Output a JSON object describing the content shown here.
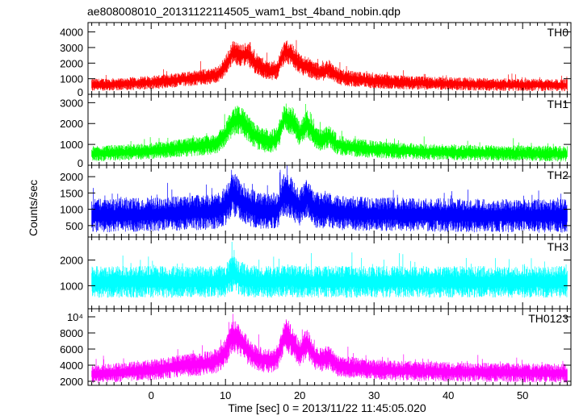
{
  "chart_data": {
    "type": "line",
    "title": "ae808008010_20131122114505_wam1_bst_4band_nobin.qdp",
    "xlabel": "Time [sec] 0 = 2013/11/22 11:45:05.020",
    "ylabel": "Counts/sec",
    "xlim": [
      -8.5,
      56.5
    ],
    "x_ticks": [
      0,
      10,
      20,
      30,
      40,
      50
    ],
    "x_minor_step": 1,
    "grid": false,
    "legend": "none",
    "panels": [
      {
        "name": "TH0",
        "color": "#ff0000",
        "ylim": [
          0,
          4600
        ],
        "y_ticks": [
          0,
          1000,
          2000,
          3000,
          4000
        ],
        "y_tick_labels": [
          "0",
          "1000",
          "2000",
          "3000",
          "4000"
        ],
        "series": {
          "x": [
            -8,
            -6,
            -4,
            -2,
            0,
            2,
            4,
            6,
            8,
            9,
            10,
            11,
            12,
            13,
            14,
            15,
            16,
            17,
            18,
            19,
            20,
            21,
            22,
            23,
            24,
            25,
            26,
            28,
            30,
            32,
            34,
            36,
            38,
            40,
            42,
            44,
            46,
            48,
            50,
            52,
            54,
            56
          ],
          "y": [
            600,
            630,
            660,
            700,
            760,
            850,
            950,
            1050,
            1150,
            1300,
            1800,
            2700,
            2500,
            2600,
            2000,
            1700,
            1500,
            1600,
            2800,
            2500,
            1900,
            1800,
            1500,
            1400,
            1600,
            1200,
            1050,
            950,
            850,
            800,
            760,
            720,
            700,
            680,
            660,
            640,
            630,
            620,
            610,
            600,
            590,
            580
          ],
          "noise": [
            400,
            400,
            400,
            420,
            440,
            460,
            480,
            500,
            520,
            550,
            650,
            750,
            750,
            750,
            700,
            650,
            600,
            650,
            750,
            750,
            650,
            650,
            600,
            600,
            620,
            550,
            520,
            500,
            480,
            460,
            450,
            440,
            430,
            420,
            420,
            410,
            410,
            400,
            400,
            400,
            400,
            400
          ]
        }
      },
      {
        "name": "TH1",
        "color": "#00ff00",
        "ylim": [
          0,
          3400
        ],
        "y_ticks": [
          0,
          1000,
          2000,
          3000
        ],
        "y_tick_labels": [
          "0",
          "1000",
          "2000",
          "3000"
        ],
        "series": {
          "x": [
            -8,
            -6,
            -4,
            -2,
            0,
            2,
            4,
            6,
            8,
            9,
            10,
            11,
            12,
            13,
            14,
            15,
            16,
            17,
            18,
            19,
            20,
            21,
            22,
            23,
            24,
            25,
            26,
            28,
            30,
            32,
            34,
            36,
            38,
            40,
            42,
            44,
            46,
            48,
            50,
            52,
            54,
            56
          ],
          "y": [
            550,
            580,
            610,
            640,
            690,
            760,
            830,
            900,
            980,
            1100,
            1500,
            2100,
            2200,
            1800,
            1400,
            1200,
            1100,
            1300,
            2300,
            2100,
            1500,
            2000,
            1400,
            1200,
            1400,
            1000,
            900,
            820,
            760,
            720,
            690,
            660,
            640,
            620,
            610,
            600,
            590,
            580,
            570,
            560,
            550,
            540
          ],
          "noise": [
            380,
            380,
            380,
            390,
            400,
            420,
            440,
            460,
            480,
            500,
            580,
            700,
            700,
            650,
            600,
            560,
            540,
            580,
            700,
            680,
            600,
            650,
            560,
            540,
            560,
            500,
            460,
            440,
            420,
            410,
            400,
            390,
            390,
            380,
            380,
            380,
            380,
            380,
            380,
            380,
            380,
            380
          ]
        }
      },
      {
        "name": "TH2",
        "color": "#0000ff",
        "ylim": [
          150,
          2350
        ],
        "y_ticks": [
          500,
          1000,
          1500,
          2000
        ],
        "y_tick_labels": [
          "500",
          "1000",
          "1500",
          "2000"
        ],
        "series": {
          "x": [
            -8,
            -6,
            -4,
            -2,
            0,
            2,
            4,
            6,
            8,
            9,
            10,
            11,
            12,
            13,
            14,
            15,
            16,
            17,
            18,
            19,
            20,
            21,
            22,
            23,
            24,
            25,
            26,
            28,
            30,
            32,
            34,
            36,
            38,
            40,
            42,
            44,
            46,
            48,
            50,
            52,
            54,
            56
          ],
          "y": [
            800,
            810,
            820,
            830,
            840,
            860,
            880,
            900,
            920,
            950,
            1100,
            1500,
            1250,
            1100,
            1000,
            950,
            930,
            980,
            1500,
            1300,
            1050,
            1350,
            1000,
            950,
            1000,
            900,
            880,
            860,
            850,
            840,
            835,
            830,
            825,
            820,
            815,
            810,
            805,
            800,
            800,
            800,
            800,
            800
          ],
          "noise": [
            520,
            520,
            520,
            520,
            520,
            530,
            530,
            540,
            540,
            550,
            600,
            700,
            650,
            600,
            580,
            560,
            560,
            580,
            700,
            650,
            580,
            620,
            560,
            550,
            560,
            540,
            530,
            530,
            520,
            520,
            520,
            520,
            520,
            520,
            520,
            520,
            520,
            520,
            520,
            520,
            520,
            520
          ]
        }
      },
      {
        "name": "TH3",
        "color": "#00ffff",
        "ylim": [
          100,
          2900
        ],
        "y_ticks": [
          1000,
          2000
        ],
        "y_tick_labels": [
          "1000",
          "2000"
        ],
        "series": {
          "x": [
            -8,
            -6,
            -4,
            -2,
            0,
            2,
            4,
            6,
            8,
            9,
            10,
            11,
            12,
            13,
            14,
            15,
            16,
            17,
            18,
            19,
            20,
            21,
            22,
            23,
            24,
            25,
            26,
            28,
            30,
            32,
            34,
            36,
            38,
            40,
            42,
            44,
            46,
            48,
            50,
            52,
            54,
            56
          ],
          "y": [
            1150,
            1150,
            1150,
            1150,
            1150,
            1150,
            1150,
            1150,
            1150,
            1150,
            1200,
            1500,
            1250,
            1200,
            1150,
            1150,
            1150,
            1150,
            1200,
            1200,
            1150,
            1150,
            1150,
            1150,
            1150,
            1150,
            1150,
            1150,
            1150,
            1150,
            1150,
            1150,
            1150,
            1150,
            1150,
            1150,
            1150,
            1150,
            1150,
            1150,
            1150,
            1150
          ],
          "noise": [
            620,
            620,
            620,
            620,
            620,
            620,
            620,
            620,
            620,
            620,
            640,
            720,
            660,
            640,
            630,
            620,
            620,
            620,
            640,
            640,
            620,
            620,
            620,
            620,
            620,
            620,
            620,
            620,
            620,
            620,
            620,
            620,
            620,
            620,
            620,
            620,
            620,
            620,
            620,
            620,
            620,
            620
          ]
        }
      },
      {
        "name": "TH0123",
        "color": "#ff00ff",
        "ylim": [
          1500,
          11000
        ],
        "y_ticks": [
          2000,
          4000,
          6000,
          8000,
          10000
        ],
        "y_tick_labels": [
          "2000",
          "4000",
          "6000",
          "8000",
          "10⁴"
        ],
        "series": {
          "x": [
            -8,
            -6,
            -4,
            -2,
            0,
            2,
            4,
            6,
            8,
            9,
            10,
            11,
            12,
            13,
            14,
            15,
            16,
            17,
            18,
            19,
            20,
            21,
            22,
            23,
            24,
            25,
            26,
            28,
            30,
            32,
            34,
            36,
            38,
            40,
            42,
            44,
            46,
            48,
            50,
            52,
            54,
            56
          ],
          "y": [
            2900,
            3000,
            3100,
            3250,
            3400,
            3650,
            3900,
            4100,
            4300,
            4600,
            5600,
            7800,
            7000,
            5800,
            5000,
            4700,
            4500,
            4900,
            7800,
            7000,
            5400,
            6800,
            5000,
            4600,
            5000,
            4000,
            3800,
            3600,
            3450,
            3350,
            3300,
            3250,
            3200,
            3180,
            3150,
            3120,
            3100,
            3080,
            3050,
            3030,
            3010,
            3000
          ],
          "noise": [
            1200,
            1200,
            1200,
            1250,
            1300,
            1350,
            1400,
            1450,
            1500,
            1550,
            1750,
            2100,
            1950,
            1750,
            1600,
            1550,
            1500,
            1600,
            2100,
            1950,
            1650,
            1900,
            1550,
            1500,
            1550,
            1400,
            1350,
            1300,
            1250,
            1250,
            1250,
            1250,
            1200,
            1200,
            1200,
            1200,
            1200,
            1200,
            1200,
            1200,
            1200,
            1200
          ]
        }
      }
    ]
  }
}
